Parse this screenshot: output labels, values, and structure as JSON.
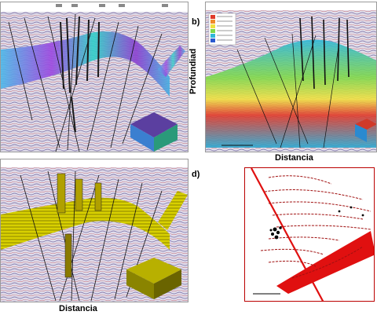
{
  "panels": {
    "b": {
      "letter": "b)",
      "ylabel": "Profundiad",
      "xlabel": "Distancia"
    },
    "c": {
      "xlabel": "Distancia"
    },
    "d": {
      "letter": "d)"
    }
  },
  "colors": {
    "seismic_bg": "#d9d6e6",
    "ant_tracking": "#7a2fd6",
    "coherence": "#3fb0e0",
    "attribute_yellow": "#d8d200",
    "map_faults": "#e01010",
    "well_marker": "#000000"
  },
  "icons": {
    "fault_lines": "fault-line-icon",
    "wells": "well-marker-icon",
    "3d_cube": "cube-icon"
  }
}
